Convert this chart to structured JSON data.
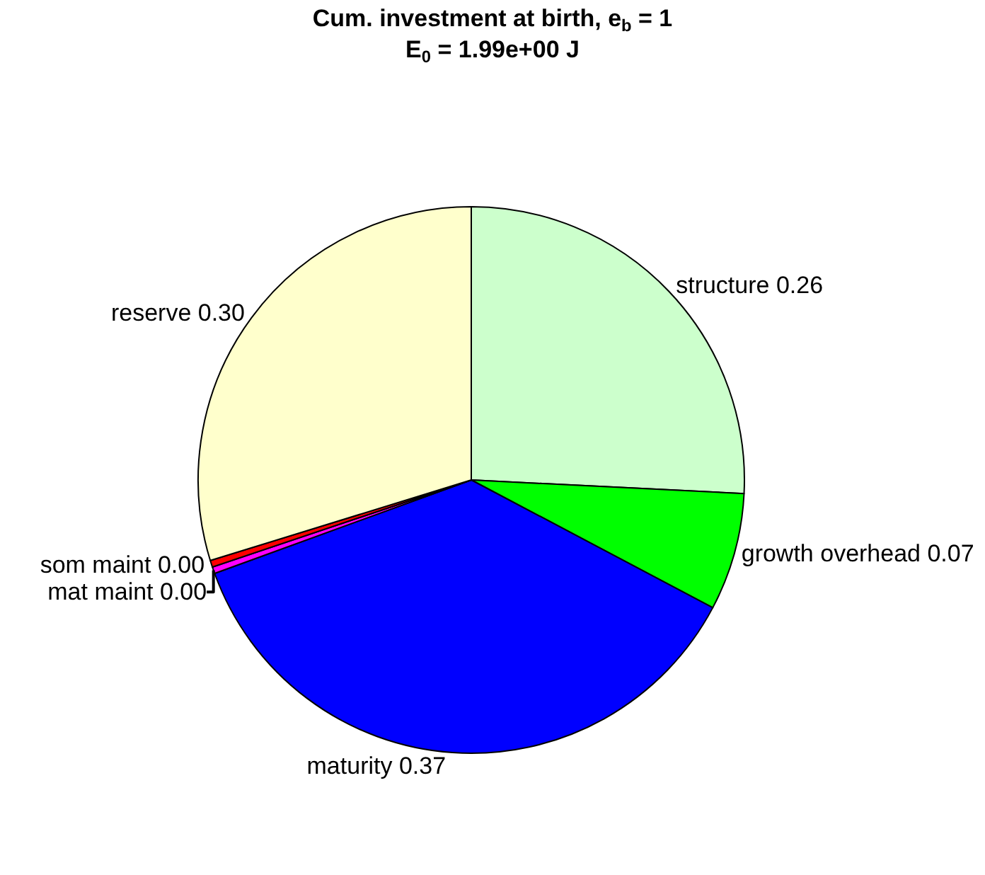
{
  "chart_data": {
    "type": "pie",
    "title": "Cum. investment at birth, e$_{b}$ = 1",
    "subtitle": "E$_{0}$ = 1.99e+00 J",
    "categories": [
      "structure",
      "growth overhead",
      "maturity",
      "mat maint",
      "som maint",
      "reserve"
    ],
    "values": [
      0.26,
      0.07,
      0.37,
      0.004,
      0.004,
      0.3
    ],
    "value_labels": [
      "0.26",
      "0.07",
      "0.37",
      "0.00",
      "0.00",
      "0.30"
    ],
    "colors": [
      "#ccffcc",
      "#00ff00",
      "#0000ff",
      "#ff00ff",
      "#ff0000",
      "#ffffcc"
    ],
    "legend": false
  }
}
